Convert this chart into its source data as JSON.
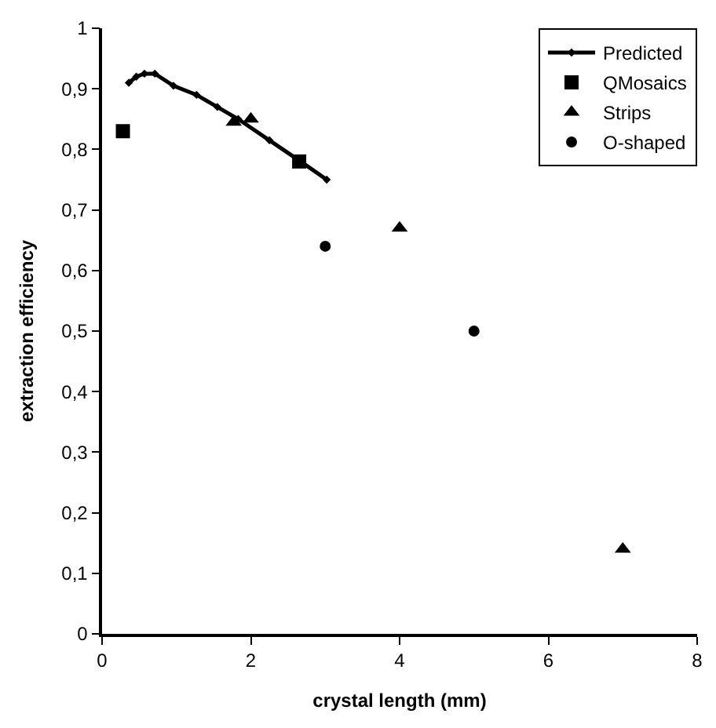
{
  "chart_data": {
    "type": "scatter",
    "xlabel": "crystal length (mm)",
    "ylabel": "extraction efficiency",
    "xlim": [
      0,
      8
    ],
    "xticks": [
      0,
      2,
      4,
      6,
      8
    ],
    "ylim": [
      0,
      1
    ],
    "yticks": [
      0,
      {
        "value": 0.1,
        "label": "0,1"
      },
      {
        "value": 0.2,
        "label": "0,2"
      },
      {
        "value": 0.3,
        "label": "0,3"
      },
      {
        "value": 0.4,
        "label": "0,4"
      },
      {
        "value": 0.5,
        "label": "0,5"
      },
      {
        "value": 0.6,
        "label": "0,6"
      },
      {
        "value": 0.7,
        "label": "0,7"
      },
      {
        "value": 0.8,
        "label": "0,8"
      },
      {
        "value": 0.9,
        "label": "0,9"
      },
      1
    ],
    "legend": "top right",
    "series": [
      {
        "name": "Predicted",
        "type": "line",
        "marker": "diamond",
        "line_style": "solid",
        "color": "#000000",
        "x": [
          0.36,
          0.46,
          0.57,
          0.71,
          0.96,
          1.27,
          1.55,
          1.83,
          2.25,
          2.67,
          3.02
        ],
        "values": [
          0.91,
          0.92,
          0.925,
          0.925,
          0.905,
          0.89,
          0.87,
          0.85,
          0.815,
          0.78,
          0.75
        ]
      },
      {
        "name": "QMosaics",
        "marker": "square",
        "color": "#000000",
        "x": [
          0.28,
          2.65
        ],
        "values": [
          0.83,
          0.78
        ]
      },
      {
        "name": "Strips",
        "marker": "triangle",
        "color": "#000000",
        "x": [
          1.77,
          2.0,
          4.0,
          7.0
        ],
        "values": [
          0.845,
          0.85,
          0.67,
          0.14
        ]
      },
      {
        "name": "O-shaped",
        "marker": "circle",
        "color": "#000000",
        "x": [
          3.0,
          5.0
        ],
        "values": [
          0.64,
          0.5
        ]
      }
    ]
  }
}
